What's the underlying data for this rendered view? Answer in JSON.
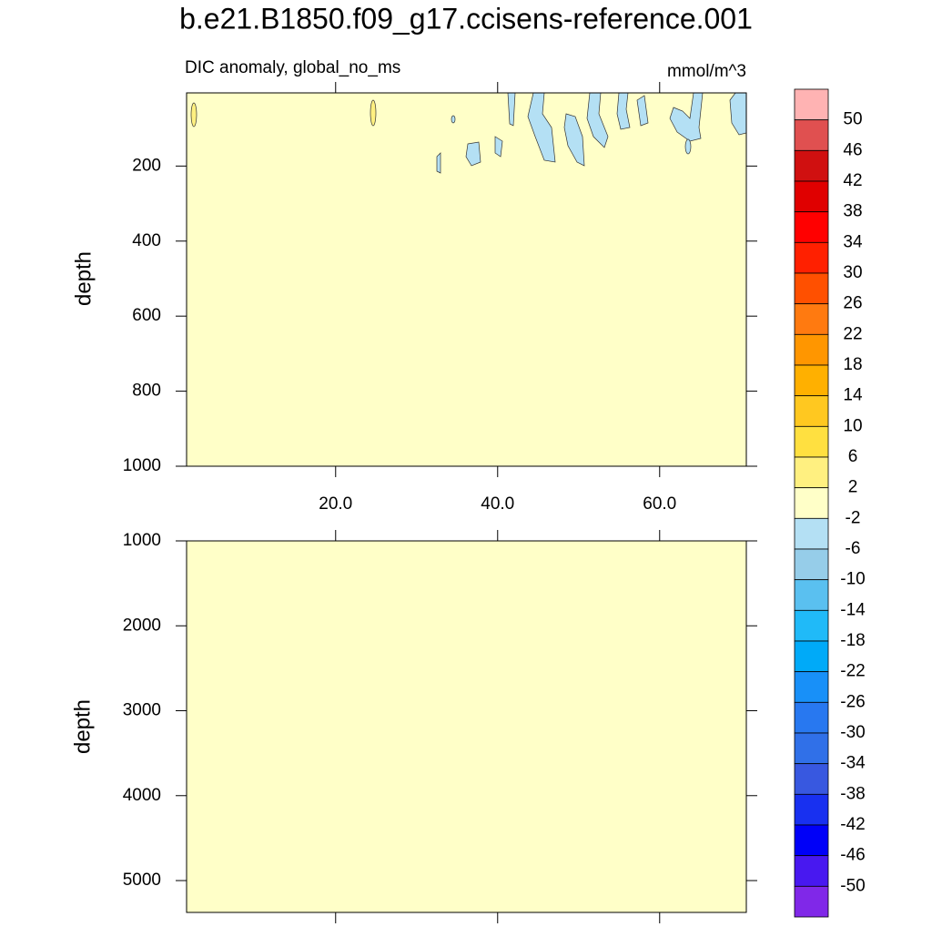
{
  "chart_data": [
    {
      "type": "contour",
      "title": "b.e21.B1850.f09_g17.ccisens-reference.001",
      "subtitle": "DIC anomaly, global_no_ms",
      "units": "mmol/m^3",
      "y_label": "depth",
      "xlim": [
        1.6,
        70.7
      ],
      "xticks": [
        {
          "value": 20,
          "label": "20.0"
        },
        {
          "value": 40,
          "label": "40.0"
        },
        {
          "value": 60,
          "label": "60.0"
        }
      ],
      "ylim": [
        5,
        1000
      ],
      "yticks": [
        200,
        400,
        600,
        800,
        1000
      ],
      "y_reversed": true,
      "colorbar": {
        "levels": [
          50,
          46,
          42,
          38,
          34,
          30,
          26,
          22,
          18,
          14,
          10,
          6,
          2,
          -2,
          -6,
          -10,
          -14,
          -18,
          -22,
          -26,
          -30,
          -34,
          -38,
          -42,
          -46,
          -50
        ],
        "colors": [
          "#ffb3b3",
          "#e05050",
          "#d01010",
          "#e00000",
          "#ff0000",
          "#ff2000",
          "#ff5000",
          "#ff7a10",
          "#ff9600",
          "#ffb000",
          "#ffc820",
          "#ffe040",
          "#fff080",
          "#ffffc8",
          "#b4e0f4",
          "#96cde9",
          "#5ac0f0",
          "#20baf8",
          "#00aaf8",
          "#1890f8",
          "#2878f0",
          "#3070e8",
          "#3858e0",
          "#1830f0",
          "#0000f8",
          "#4818f0",
          "#8028e8"
        ]
      }
    },
    {
      "type": "contour",
      "y_label": "depth",
      "xlim": [
        1.6,
        70.7
      ],
      "xticks": [
        20,
        40,
        60
      ],
      "ylim": [
        1000,
        5375
      ],
      "yticks": [
        1000,
        2000,
        3000,
        4000,
        5000
      ],
      "y_reversed": true
    }
  ]
}
